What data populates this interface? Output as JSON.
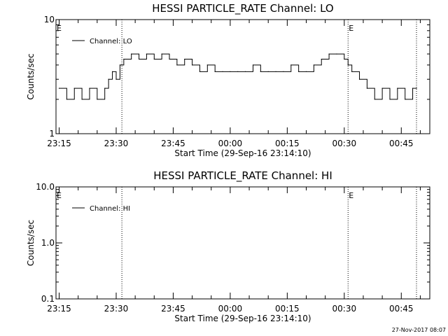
{
  "footer": {
    "stamp": "27-Nov-2017 08:07"
  },
  "chart_data": [
    {
      "type": "line",
      "title": "HESSI PARTICLE_RATE Channel: LO",
      "xlabel": "Start Time (29-Sep-16 23:14:10)",
      "ylabel": "Counts/sec",
      "yscale": "log",
      "ylim": [
        1,
        10
      ],
      "yticks": [
        1,
        10
      ],
      "ytick_labels": [
        "1",
        "10"
      ],
      "xlim": [
        "23:14:10",
        "00:52:30"
      ],
      "xticks": [
        "23:15",
        "23:30",
        "23:45",
        "00:00",
        "00:15",
        "00:30",
        "00:45"
      ],
      "marker_lines": [
        {
          "time": "23:31:30",
          "label": ""
        },
        {
          "time": "00:31:00",
          "label": "E"
        },
        {
          "time": "00:49:00",
          "label": ""
        }
      ],
      "left_marker": "E",
      "legend_position": "top-left",
      "series": [
        {
          "name": "Channel: LO",
          "x": [
            "23:15:00",
            "23:17:00",
            "23:19:00",
            "23:21:00",
            "23:23:00",
            "23:25:00",
            "23:27:00",
            "23:28:00",
            "23:29:00",
            "23:30:00",
            "23:31:00",
            "23:32:00",
            "23:34:00",
            "23:36:00",
            "23:38:00",
            "23:40:00",
            "23:42:00",
            "23:44:00",
            "23:46:00",
            "23:48:00",
            "23:50:00",
            "23:52:00",
            "23:54:00",
            "23:56:00",
            "23:58:00",
            "00:00:00",
            "00:02:00",
            "00:04:00",
            "00:06:00",
            "00:08:00",
            "00:10:00",
            "00:12:00",
            "00:14:00",
            "00:16:00",
            "00:18:00",
            "00:20:00",
            "00:22:00",
            "00:24:00",
            "00:26:00",
            "00:28:00",
            "00:30:00",
            "00:31:00",
            "00:32:00",
            "00:34:00",
            "00:36:00",
            "00:38:00",
            "00:40:00",
            "00:42:00",
            "00:44:00",
            "00:46:00",
            "00:48:00",
            "00:49:00"
          ],
          "y": [
            2.5,
            2.0,
            2.5,
            2.0,
            2.5,
            2.0,
            2.5,
            3.0,
            3.5,
            3.0,
            4.0,
            4.5,
            5.0,
            4.5,
            5.0,
            4.5,
            5.0,
            4.5,
            4.0,
            4.5,
            4.0,
            3.5,
            4.0,
            3.5,
            3.5,
            3.5,
            3.5,
            3.5,
            4.0,
            3.5,
            3.5,
            3.5,
            3.5,
            4.0,
            3.5,
            3.5,
            4.0,
            4.5,
            5.0,
            5.0,
            4.5,
            4.0,
            3.5,
            3.0,
            2.5,
            2.0,
            2.5,
            2.0,
            2.5,
            2.0,
            2.5,
            2.5
          ]
        }
      ]
    },
    {
      "type": "line",
      "title": "HESSI PARTICLE_RATE Channel: HI",
      "xlabel": "Start Time (29-Sep-16 23:14:10)",
      "ylabel": "Counts/sec",
      "yscale": "log",
      "ylim": [
        0.1,
        10
      ],
      "yticks": [
        0.1,
        1,
        10
      ],
      "ytick_labels": [
        "0.1",
        "1.0",
        "10.0"
      ],
      "xlim": [
        "23:14:10",
        "00:52:30"
      ],
      "xticks": [
        "23:15",
        "23:30",
        "23:45",
        "00:00",
        "00:15",
        "00:30",
        "00:45"
      ],
      "marker_lines": [
        {
          "time": "23:31:30",
          "label": ""
        },
        {
          "time": "00:31:00",
          "label": "E"
        },
        {
          "time": "00:49:00",
          "label": ""
        }
      ],
      "left_marker": "E",
      "legend_position": "top-left",
      "series": [
        {
          "name": "Channel: HI",
          "x": [],
          "y": []
        }
      ]
    }
  ]
}
